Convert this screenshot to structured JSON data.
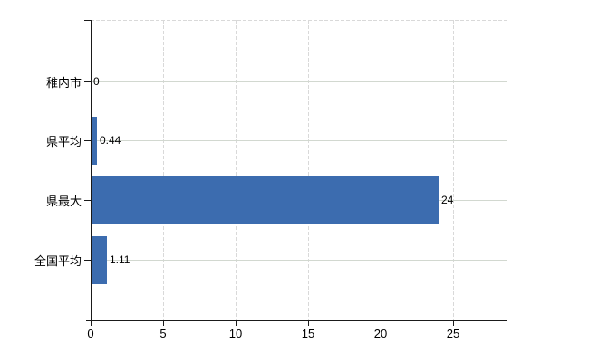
{
  "chart_data": {
    "type": "bar",
    "orientation": "horizontal",
    "title": "",
    "xlabel": "",
    "ylabel": "",
    "categories": [
      "稚内市",
      "県平均",
      "県最大",
      "全国平均"
    ],
    "values": [
      0,
      0.44,
      24,
      1.11
    ],
    "value_labels": [
      "0",
      "0.44",
      "24",
      "1.11"
    ],
    "x_tick_values": [
      0,
      5,
      10,
      15,
      20,
      25
    ],
    "x_tick_labels": [
      "0",
      "5",
      "10",
      "15",
      "20",
      "25"
    ],
    "xlim": [
      0,
      28.75
    ],
    "grid": true,
    "legend": "none",
    "colors": {
      "bar": "#3c6caf",
      "axis": "#1a1a1a",
      "grid_vertical": "#d9d9d9",
      "grid_horizontal": "#d2d8d0",
      "text": "#000000",
      "background": "#ffffff"
    }
  }
}
